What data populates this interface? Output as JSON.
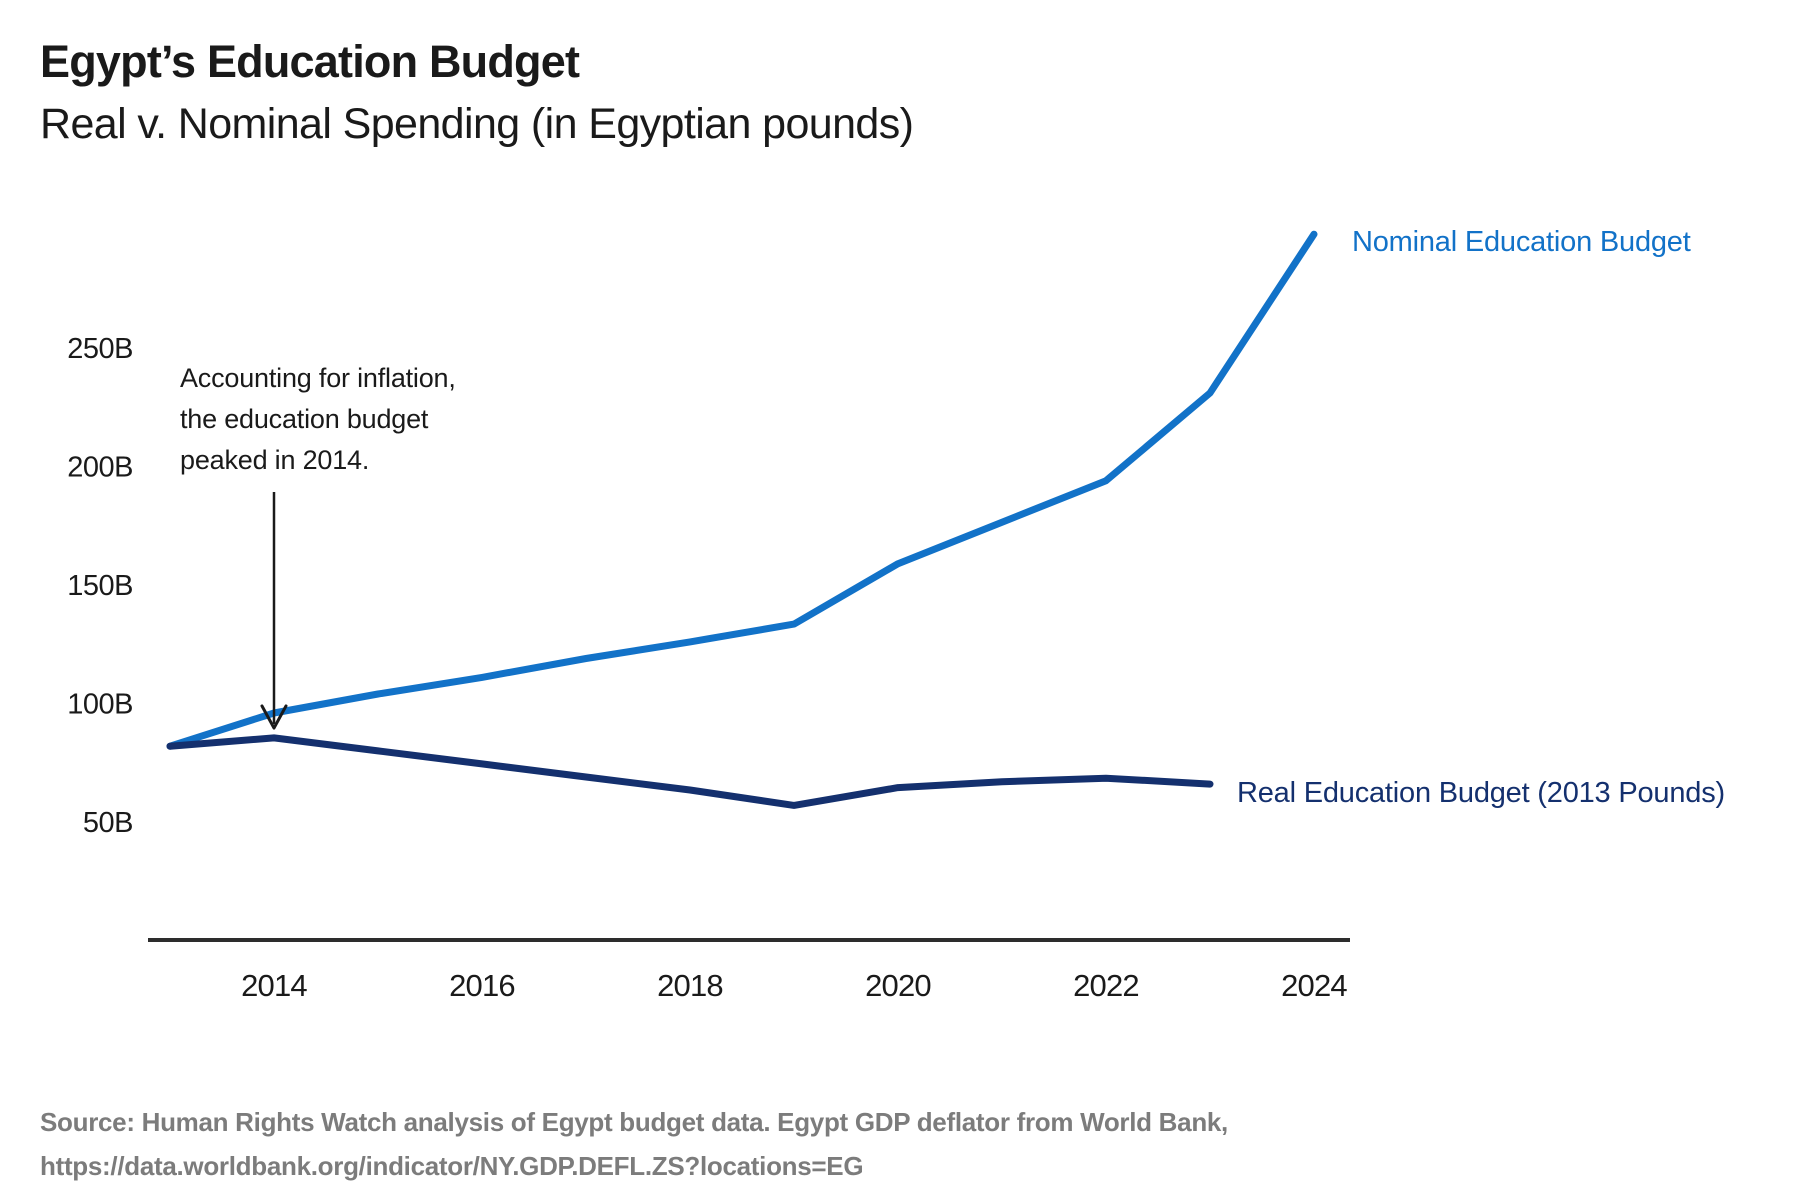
{
  "title": "Egypt’s Education Budget",
  "subtitle": "Real v. Nominal Spending (in Egyptian pounds)",
  "annotation": {
    "lines": [
      "Accounting for inflation,",
      "the education budget",
      "peaked in 2014."
    ]
  },
  "source": {
    "line1": "Source: Human Rights Watch analysis of Egypt budget data. Egypt GDP deflator from World Bank,",
    "line2": "https://data.worldbank.org/indicator/NY.GDP.DEFL.ZS?locations=EG"
  },
  "colors": {
    "nominal": "#1272c8",
    "real": "#14306e",
    "axis": "#2d2d2d",
    "text": "#1a1a1a",
    "source_text": "#7c7c7c"
  },
  "chart_data": {
    "type": "line",
    "title": "Egypt’s Education Budget — Real v. Nominal Spending (in Egyptian pounds)",
    "x": [
      2013,
      2014,
      2015,
      2016,
      2017,
      2018,
      2019,
      2020,
      2021,
      2022,
      2023,
      2024
    ],
    "series": [
      {
        "name": "Nominal Education Budget",
        "color_key": "nominal",
        "values": [
          82,
          96,
          104,
          111,
          119,
          126,
          133.5,
          159,
          176.5,
          194,
          231,
          298
        ]
      },
      {
        "name": "Real Education Budget (2013 Pounds)",
        "color_key": "real",
        "values": [
          82,
          85.5,
          80,
          74.5,
          69,
          63.5,
          57,
          64.5,
          67,
          68.5,
          66,
          null
        ]
      }
    ],
    "unit": "billions of Egyptian pounds",
    "xlabel": "",
    "ylabel": "",
    "x_ticks": [
      2014,
      2016,
      2018,
      2020,
      2022,
      2024
    ],
    "y_ticks": [
      "50B",
      "100B",
      "150B",
      "200B",
      "250B"
    ],
    "y_tick_values": [
      50,
      100,
      150,
      200,
      250
    ],
    "xlim": [
      2013,
      2024
    ],
    "grid": false,
    "legend": "inline end-of-line labels"
  }
}
